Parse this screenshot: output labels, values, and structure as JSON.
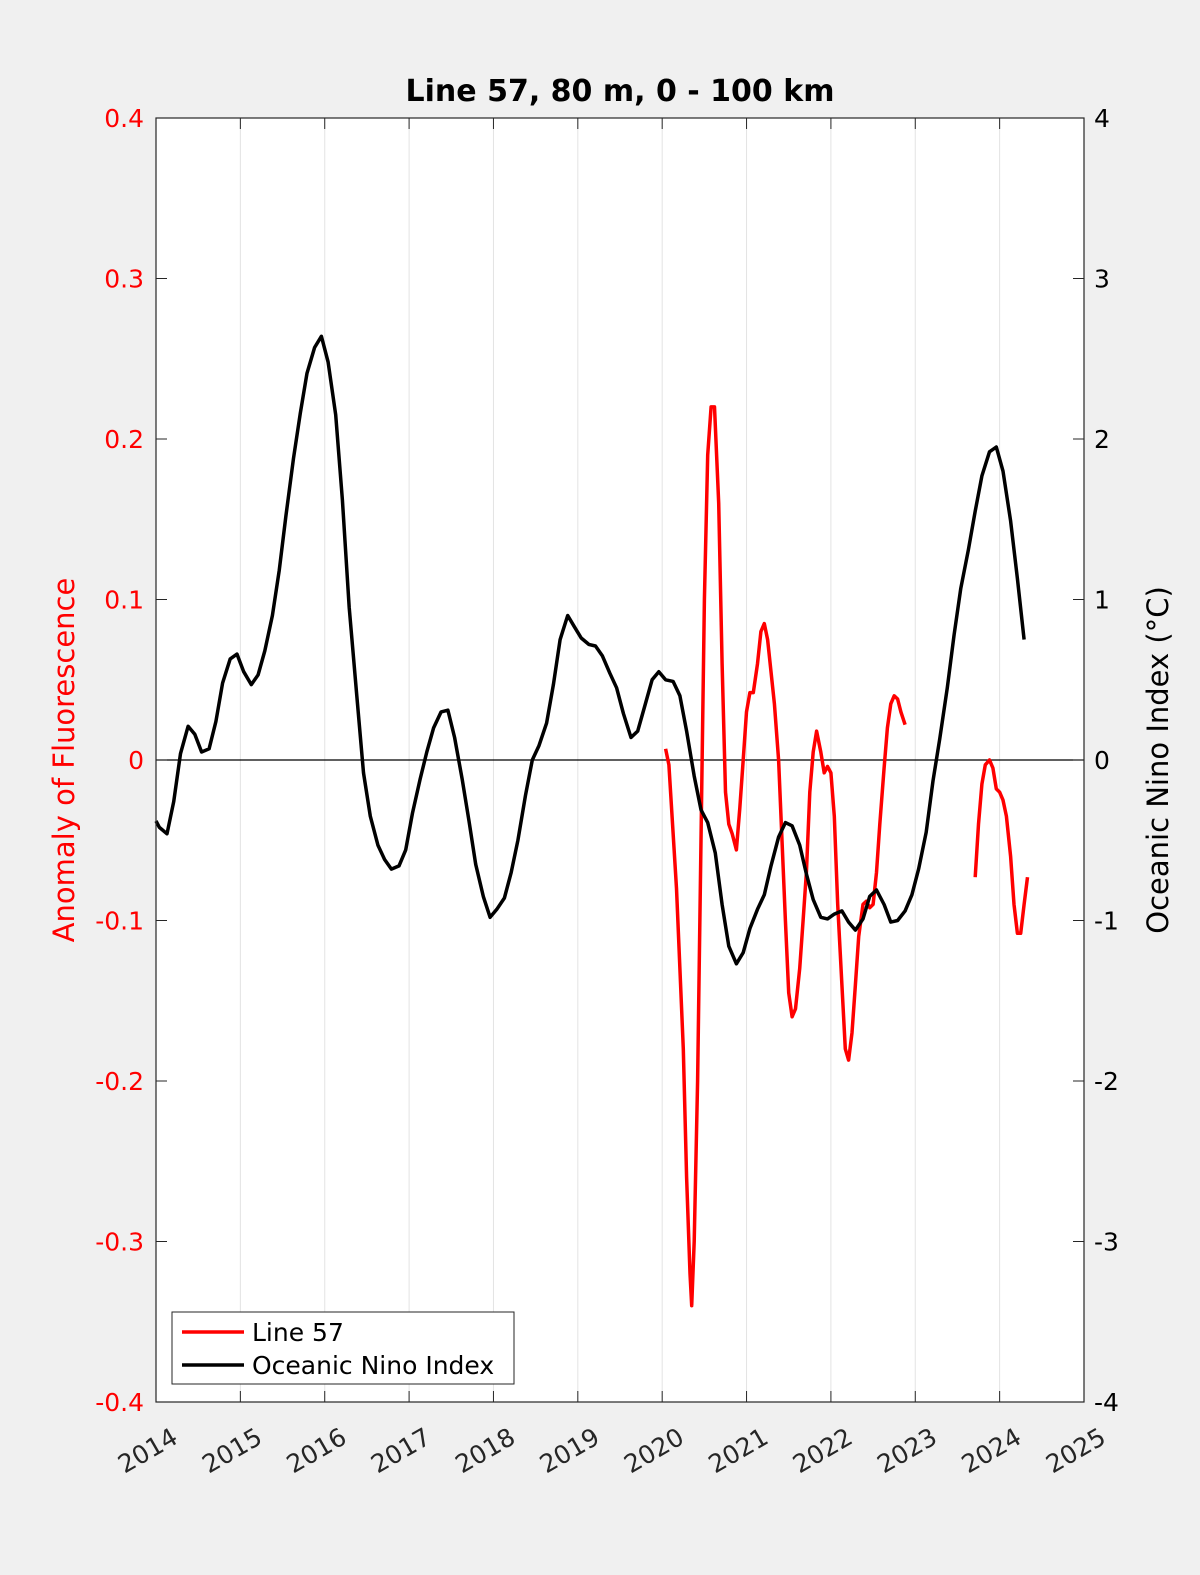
{
  "chart_data": {
    "type": "line",
    "title": "Line 57, 80 m, 0 - 100 km",
    "xlabel": "",
    "ylabel_left": "Anomaly of Fluorescence",
    "ylabel_right": "Oceanic Nino Index (°C)",
    "xlim": [
      2014,
      2025
    ],
    "ylim_left": [
      -0.4,
      0.4
    ],
    "ylim_right": [
      -4,
      4
    ],
    "x_ticks": [
      "2014",
      "2015",
      "2016",
      "2017",
      "2018",
      "2019",
      "2020",
      "2021",
      "2022",
      "2023",
      "2024",
      "2025"
    ],
    "y_ticks_left": [
      "0.4",
      "0.3",
      "0.2",
      "0.1",
      "0",
      "-0.1",
      "-0.2",
      "-0.3",
      "-0.4"
    ],
    "y_ticks_right": [
      "4",
      "3",
      "2",
      "1",
      "0",
      "-1",
      "-2",
      "-3",
      "-4"
    ],
    "grid": "vertical",
    "zero_line": true,
    "legend_position": "bottom-left",
    "colors": {
      "line57": "#ff0000",
      "oni": "#000000",
      "left_axis": "#ff0000",
      "right_axis": "#000000"
    },
    "series": [
      {
        "name": "Line 57",
        "axis": "left",
        "segments": [
          [
            [
              2020.04,
              0.007
            ],
            [
              2020.08,
              -0.003
            ],
            [
              2020.17,
              -0.08
            ],
            [
              2020.25,
              -0.18
            ],
            [
              2020.29,
              -0.26
            ],
            [
              2020.33,
              -0.32
            ],
            [
              2020.35,
              -0.34
            ],
            [
              2020.38,
              -0.3
            ],
            [
              2020.42,
              -0.2
            ],
            [
              2020.46,
              -0.05
            ],
            [
              2020.5,
              0.1
            ],
            [
              2020.54,
              0.19
            ],
            [
              2020.58,
              0.22
            ],
            [
              2020.62,
              0.22
            ],
            [
              2020.67,
              0.16
            ],
            [
              2020.71,
              0.06
            ],
            [
              2020.75,
              -0.02
            ],
            [
              2020.79,
              -0.04
            ],
            [
              2020.83,
              -0.046
            ],
            [
              2020.88,
              -0.056
            ],
            [
              2020.92,
              -0.03
            ],
            [
              2020.96,
              0.0
            ],
            [
              2021.0,
              0.03
            ],
            [
              2021.04,
              0.042
            ],
            [
              2021.08,
              0.042
            ],
            [
              2021.13,
              0.06
            ],
            [
              2021.17,
              0.08
            ],
            [
              2021.21,
              0.085
            ],
            [
              2021.25,
              0.075
            ],
            [
              2021.29,
              0.055
            ],
            [
              2021.33,
              0.035
            ],
            [
              2021.38,
              0.0
            ],
            [
              2021.42,
              -0.05
            ],
            [
              2021.46,
              -0.1
            ],
            [
              2021.5,
              -0.145
            ],
            [
              2021.54,
              -0.16
            ],
            [
              2021.58,
              -0.155
            ],
            [
              2021.63,
              -0.13
            ],
            [
              2021.67,
              -0.1
            ],
            [
              2021.71,
              -0.07
            ],
            [
              2021.75,
              -0.02
            ],
            [
              2021.79,
              0.005
            ],
            [
              2021.83,
              0.018
            ],
            [
              2021.88,
              0.005
            ],
            [
              2021.92,
              -0.008
            ],
            [
              2021.96,
              -0.004
            ],
            [
              2022.0,
              -0.008
            ],
            [
              2022.04,
              -0.035
            ],
            [
              2022.08,
              -0.09
            ],
            [
              2022.13,
              -0.14
            ],
            [
              2022.17,
              -0.18
            ],
            [
              2022.21,
              -0.187
            ],
            [
              2022.25,
              -0.17
            ],
            [
              2022.29,
              -0.14
            ],
            [
              2022.33,
              -0.11
            ],
            [
              2022.38,
              -0.09
            ],
            [
              2022.42,
              -0.088
            ],
            [
              2022.46,
              -0.092
            ],
            [
              2022.5,
              -0.09
            ],
            [
              2022.54,
              -0.07
            ],
            [
              2022.58,
              -0.04
            ],
            [
              2022.63,
              -0.005
            ],
            [
              2022.67,
              0.02
            ],
            [
              2022.71,
              0.035
            ],
            [
              2022.75,
              0.04
            ],
            [
              2022.79,
              0.038
            ],
            [
              2022.83,
              0.03
            ],
            [
              2022.88,
              0.022
            ]
          ],
          [
            [
              2023.71,
              -0.073
            ],
            [
              2023.75,
              -0.04
            ],
            [
              2023.79,
              -0.015
            ],
            [
              2023.83,
              -0.003
            ],
            [
              2023.88,
              0.0
            ],
            [
              2023.92,
              -0.005
            ],
            [
              2023.96,
              -0.018
            ],
            [
              2024.0,
              -0.02
            ],
            [
              2024.04,
              -0.025
            ],
            [
              2024.08,
              -0.035
            ],
            [
              2024.13,
              -0.06
            ],
            [
              2024.17,
              -0.09
            ],
            [
              2024.21,
              -0.108
            ],
            [
              2024.25,
              -0.108
            ],
            [
              2024.29,
              -0.09
            ],
            [
              2024.33,
              -0.073
            ]
          ]
        ]
      },
      {
        "name": "Oceanic Nino Index",
        "axis": "right",
        "segments": [
          [
            [
              2014.0,
              -0.38
            ],
            [
              2014.04,
              -0.42
            ],
            [
              2014.13,
              -0.46
            ],
            [
              2014.21,
              -0.26
            ],
            [
              2014.29,
              0.04
            ],
            [
              2014.38,
              0.21
            ],
            [
              2014.46,
              0.16
            ],
            [
              2014.54,
              0.05
            ],
            [
              2014.63,
              0.07
            ],
            [
              2014.71,
              0.24
            ],
            [
              2014.79,
              0.48
            ],
            [
              2014.88,
              0.63
            ],
            [
              2014.96,
              0.66
            ],
            [
              2015.04,
              0.55
            ],
            [
              2015.13,
              0.47
            ],
            [
              2015.21,
              0.53
            ],
            [
              2015.29,
              0.68
            ],
            [
              2015.38,
              0.9
            ],
            [
              2015.46,
              1.18
            ],
            [
              2015.54,
              1.52
            ],
            [
              2015.63,
              1.88
            ],
            [
              2015.71,
              2.16
            ],
            [
              2015.79,
              2.41
            ],
            [
              2015.88,
              2.57
            ],
            [
              2015.96,
              2.64
            ],
            [
              2016.04,
              2.48
            ],
            [
              2016.13,
              2.15
            ],
            [
              2016.21,
              1.62
            ],
            [
              2016.29,
              0.95
            ],
            [
              2016.38,
              0.4
            ],
            [
              2016.46,
              -0.08
            ],
            [
              2016.54,
              -0.35
            ],
            [
              2016.63,
              -0.53
            ],
            [
              2016.71,
              -0.62
            ],
            [
              2016.79,
              -0.68
            ],
            [
              2016.88,
              -0.66
            ],
            [
              2016.96,
              -0.56
            ],
            [
              2017.04,
              -0.33
            ],
            [
              2017.13,
              -0.12
            ],
            [
              2017.21,
              0.05
            ],
            [
              2017.29,
              0.2
            ],
            [
              2017.38,
              0.3
            ],
            [
              2017.46,
              0.31
            ],
            [
              2017.54,
              0.14
            ],
            [
              2017.63,
              -0.12
            ],
            [
              2017.71,
              -0.38
            ],
            [
              2017.79,
              -0.65
            ],
            [
              2017.88,
              -0.85
            ],
            [
              2017.96,
              -0.98
            ],
            [
              2018.04,
              -0.93
            ],
            [
              2018.13,
              -0.86
            ],
            [
              2018.21,
              -0.7
            ],
            [
              2018.29,
              -0.5
            ],
            [
              2018.38,
              -0.22
            ],
            [
              2018.46,
              0.0
            ],
            [
              2018.54,
              0.09
            ],
            [
              2018.63,
              0.23
            ],
            [
              2018.71,
              0.47
            ],
            [
              2018.79,
              0.75
            ],
            [
              2018.88,
              0.9
            ],
            [
              2018.96,
              0.83
            ],
            [
              2019.04,
              0.76
            ],
            [
              2019.13,
              0.72
            ],
            [
              2019.21,
              0.71
            ],
            [
              2019.29,
              0.65
            ],
            [
              2019.38,
              0.54
            ],
            [
              2019.46,
              0.45
            ],
            [
              2019.54,
              0.29
            ],
            [
              2019.63,
              0.14
            ],
            [
              2019.71,
              0.18
            ],
            [
              2019.79,
              0.33
            ],
            [
              2019.88,
              0.5
            ],
            [
              2019.96,
              0.55
            ],
            [
              2020.04,
              0.5
            ],
            [
              2020.13,
              0.49
            ],
            [
              2020.21,
              0.4
            ],
            [
              2020.29,
              0.18
            ],
            [
              2020.38,
              -0.1
            ],
            [
              2020.46,
              -0.31
            ],
            [
              2020.54,
              -0.39
            ],
            [
              2020.63,
              -0.58
            ],
            [
              2020.71,
              -0.9
            ],
            [
              2020.79,
              -1.16
            ],
            [
              2020.88,
              -1.27
            ],
            [
              2020.96,
              -1.2
            ],
            [
              2021.04,
              -1.05
            ],
            [
              2021.13,
              -0.93
            ],
            [
              2021.21,
              -0.84
            ],
            [
              2021.29,
              -0.66
            ],
            [
              2021.38,
              -0.48
            ],
            [
              2021.46,
              -0.39
            ],
            [
              2021.54,
              -0.41
            ],
            [
              2021.63,
              -0.53
            ],
            [
              2021.71,
              -0.71
            ],
            [
              2021.79,
              -0.87
            ],
            [
              2021.88,
              -0.98
            ],
            [
              2021.96,
              -0.99
            ],
            [
              2022.04,
              -0.96
            ],
            [
              2022.13,
              -0.94
            ],
            [
              2022.21,
              -1.01
            ],
            [
              2022.29,
              -1.06
            ],
            [
              2022.38,
              -0.99
            ],
            [
              2022.46,
              -0.85
            ],
            [
              2022.54,
              -0.81
            ],
            [
              2022.63,
              -0.9
            ],
            [
              2022.71,
              -1.01
            ],
            [
              2022.79,
              -1.0
            ],
            [
              2022.88,
              -0.94
            ],
            [
              2022.96,
              -0.84
            ],
            [
              2023.04,
              -0.68
            ],
            [
              2023.13,
              -0.45
            ],
            [
              2023.21,
              -0.13
            ],
            [
              2023.29,
              0.13
            ],
            [
              2023.38,
              0.45
            ],
            [
              2023.46,
              0.78
            ],
            [
              2023.54,
              1.07
            ],
            [
              2023.63,
              1.31
            ],
            [
              2023.71,
              1.55
            ],
            [
              2023.79,
              1.77
            ],
            [
              2023.88,
              1.92
            ],
            [
              2023.96,
              1.95
            ],
            [
              2024.04,
              1.8
            ],
            [
              2024.13,
              1.49
            ],
            [
              2024.21,
              1.13
            ],
            [
              2024.29,
              0.75
            ]
          ]
        ]
      }
    ]
  }
}
